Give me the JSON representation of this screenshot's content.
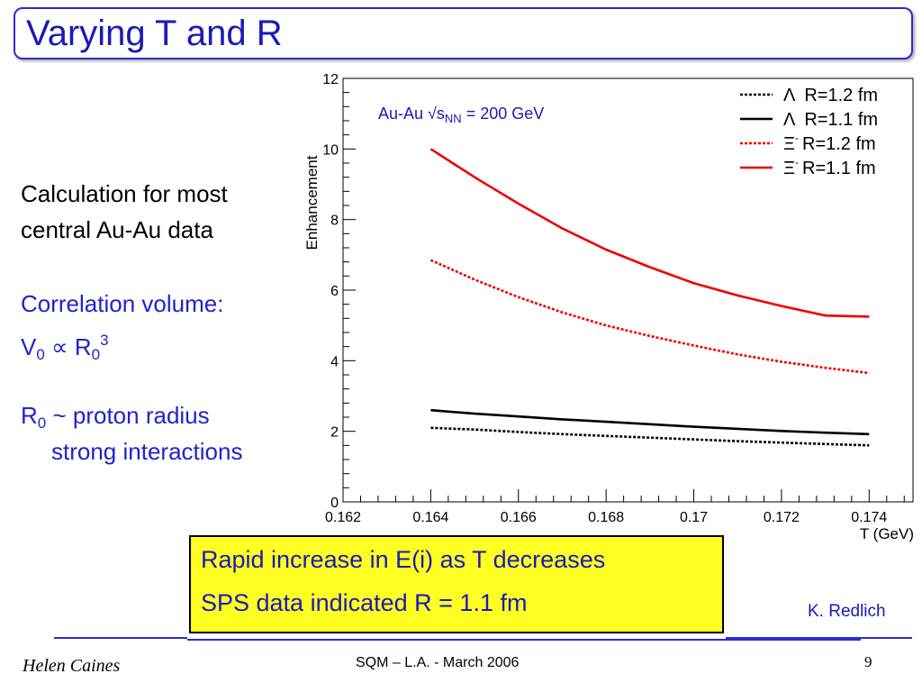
{
  "slide": {
    "title": "Varying T and R",
    "left_text": {
      "line1": "Calculation for most",
      "line2": "central Au-Au data",
      "corr_label": "Correlation volume:",
      "v": "V",
      "v_sub": "0",
      "prop": " ∝ R",
      "r_sub": "0",
      "r_sup": "3",
      "r0_r": "R",
      "r0_sub": "0",
      "r0_text": " ~ proton radius",
      "strong": "strong interactions"
    },
    "highlight": {
      "line1": "Rapid increase in E(i) as T decreases",
      "line2": "SPS data indicated R = 1.1 fm"
    },
    "credit": "K. Redlich",
    "footer": {
      "author": "Helen Caines",
      "center": "SQM  – L.A. - March 2006",
      "page": "9"
    }
  },
  "chart_data": {
    "type": "line",
    "ylabel": "Enhancement",
    "xlabel": "T (GeV)",
    "xlim": [
      0.162,
      0.175
    ],
    "ylim": [
      0,
      12
    ],
    "xticks": [
      "0.162",
      "0.164",
      "0.166",
      "0.168",
      "0.17",
      "0.172",
      "0.174"
    ],
    "yticks": [
      "0",
      "2",
      "4",
      "6",
      "8",
      "10",
      "12"
    ],
    "annotation": {
      "pre": "Au-Au ",
      "sqrt": "√",
      "s": "s",
      "sub": "NN",
      "post": " = 200 GeV"
    },
    "legend_position": "top-right",
    "x": [
      0.164,
      0.165,
      0.166,
      0.167,
      0.168,
      0.169,
      0.17,
      0.171,
      0.172,
      0.173,
      0.174
    ],
    "series": [
      {
        "name": "Λ  R=1.2 fm",
        "color": "#000000",
        "dash": "dotted",
        "values": [
          2.1,
          2.05,
          1.98,
          1.92,
          1.87,
          1.82,
          1.77,
          1.72,
          1.68,
          1.64,
          1.6
        ]
      },
      {
        "name": "Λ  R=1.1 fm",
        "color": "#000000",
        "dash": "solid",
        "values": [
          2.6,
          2.5,
          2.42,
          2.34,
          2.27,
          2.2,
          2.13,
          2.07,
          2.01,
          1.96,
          1.92
        ]
      },
      {
        "name": "Ξ  R=1.2 fm",
        "legend_sup": "-",
        "color": "#ee0000",
        "dash": "dotted",
        "values": [
          6.85,
          6.3,
          5.8,
          5.37,
          5.0,
          4.7,
          4.43,
          4.18,
          3.97,
          3.8,
          3.65
        ]
      },
      {
        "name": "Ξ  R=1.1 fm",
        "legend_sup": "-",
        "color": "#ee0000",
        "dash": "solid",
        "values": [
          10.0,
          9.2,
          8.45,
          7.75,
          7.15,
          6.65,
          6.2,
          5.85,
          5.55,
          5.28,
          5.25
        ]
      }
    ]
  }
}
